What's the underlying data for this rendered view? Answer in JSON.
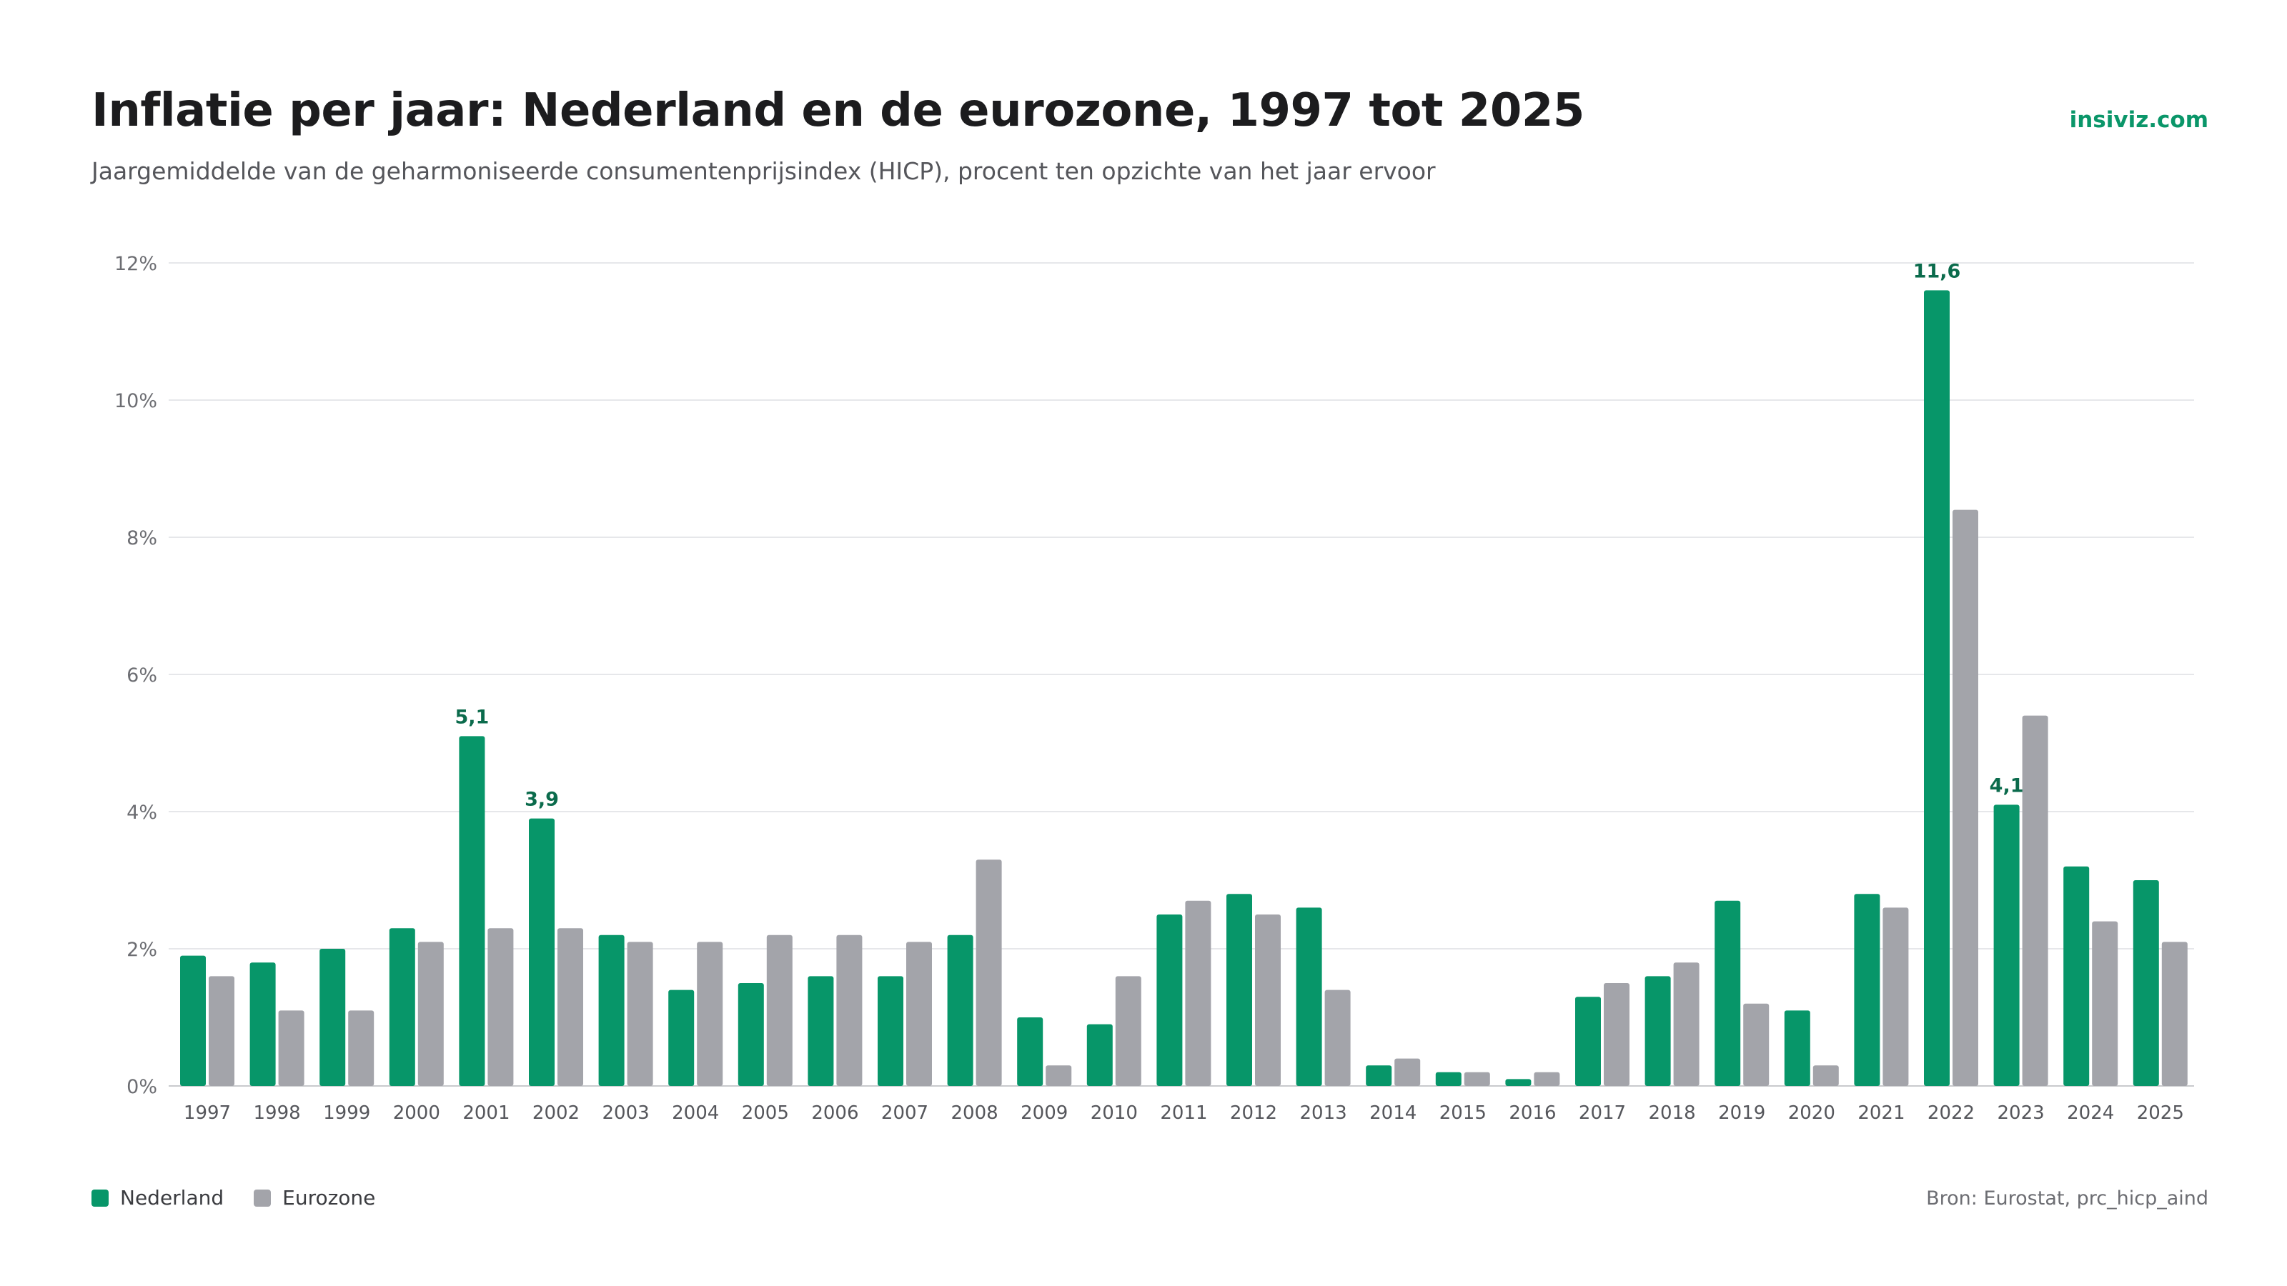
{
  "header": {
    "title": "Inflatie per jaar: Nederland en de eurozone, 1997 tot 2025",
    "subtitle": "Jaargemiddelde van de geharmoniseerde consumentenprijsindex (HICP), procent ten opzichte van het jaar ervoor",
    "brand": "insiviz.com"
  },
  "footer": {
    "source": "Bron: Eurostat, prc_hicp_aind"
  },
  "legend": [
    {
      "label": "Nederland",
      "color": "#079669"
    },
    {
      "label": "Eurozone",
      "color": "#a3a4aa"
    }
  ],
  "chart_data": {
    "type": "bar",
    "title": "Inflatie per jaar: Nederland en de eurozone, 1997 tot 2025",
    "subtitle": "Jaargemiddelde van de geharmoniseerde consumentenprijsindex (HICP), procent ten opzichte van het jaar ervoor",
    "xlabel": "",
    "ylabel": "",
    "ylim": [
      0,
      12
    ],
    "y_ticks": [
      0,
      2,
      4,
      6,
      8,
      10,
      12
    ],
    "y_tick_labels": [
      "0%",
      "2%",
      "4%",
      "6%",
      "8%",
      "10%",
      "12%"
    ],
    "grid": true,
    "legend_position": "bottom-left",
    "categories": [
      "1997",
      "1998",
      "1999",
      "2000",
      "2001",
      "2002",
      "2003",
      "2004",
      "2005",
      "2006",
      "2007",
      "2008",
      "2009",
      "2010",
      "2011",
      "2012",
      "2013",
      "2014",
      "2015",
      "2016",
      "2017",
      "2018",
      "2019",
      "2020",
      "2021",
      "2022",
      "2023",
      "2024",
      "2025"
    ],
    "series": [
      {
        "name": "Nederland",
        "color": "#079669",
        "values": [
          1.9,
          1.8,
          2.0,
          2.3,
          5.1,
          3.9,
          2.2,
          1.4,
          1.5,
          1.6,
          1.6,
          2.2,
          1.0,
          0.9,
          2.5,
          2.8,
          2.6,
          0.3,
          0.2,
          0.1,
          1.3,
          1.6,
          2.7,
          1.1,
          2.8,
          11.6,
          4.1,
          3.2,
          3.0
        ]
      },
      {
        "name": "Eurozone",
        "color": "#a3a4aa",
        "values": [
          1.6,
          1.1,
          1.1,
          2.1,
          2.3,
          2.3,
          2.1,
          2.1,
          2.2,
          2.2,
          2.1,
          3.3,
          0.3,
          1.6,
          2.7,
          2.5,
          1.4,
          0.4,
          0.2,
          0.2,
          1.5,
          1.8,
          1.2,
          0.3,
          2.6,
          8.4,
          5.4,
          2.4,
          2.1
        ]
      }
    ],
    "annotations": [
      {
        "series": "Nederland",
        "category": "2001",
        "label": "5,1"
      },
      {
        "series": "Nederland",
        "category": "2002",
        "label": "3,9"
      },
      {
        "series": "Nederland",
        "category": "2022",
        "label": "11,6"
      },
      {
        "series": "Nederland",
        "category": "2023",
        "label": "4,1"
      }
    ]
  }
}
